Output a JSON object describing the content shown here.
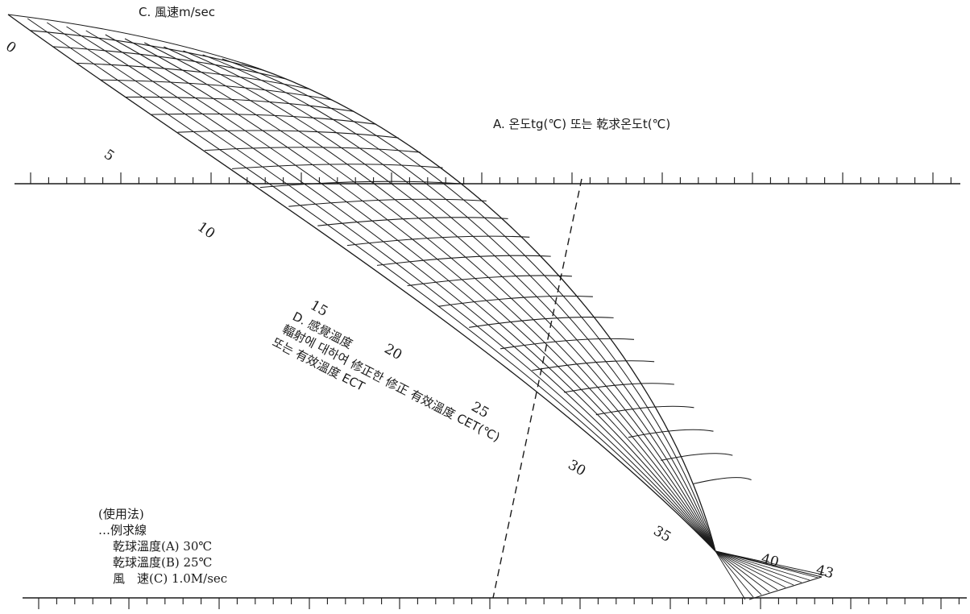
{
  "title_c": "C. 風速m/sec",
  "title_a": "A. 온도tg(℃) 또는 乾求온도t(℃)",
  "title_d_1": "D. 感覺溫度",
  "title_d_2": "輻射에 대하여 修正한 修正 有效溫度 CET(℃)",
  "title_d_3": "또는 有效溫度 ECT",
  "wind_labels": [
    "0",
    "5",
    "10"
  ],
  "temp_labels": [
    "15",
    "20",
    "25",
    "30",
    "35",
    "40",
    "43"
  ],
  "usage": {
    "heading": "(使用法)",
    "line1": "…例求線",
    "line2": "乾球溫度(A) 30℃",
    "line3": "乾球溫度(B) 25℃",
    "line4": "風　速(C) 1.0M/sec"
  }
}
